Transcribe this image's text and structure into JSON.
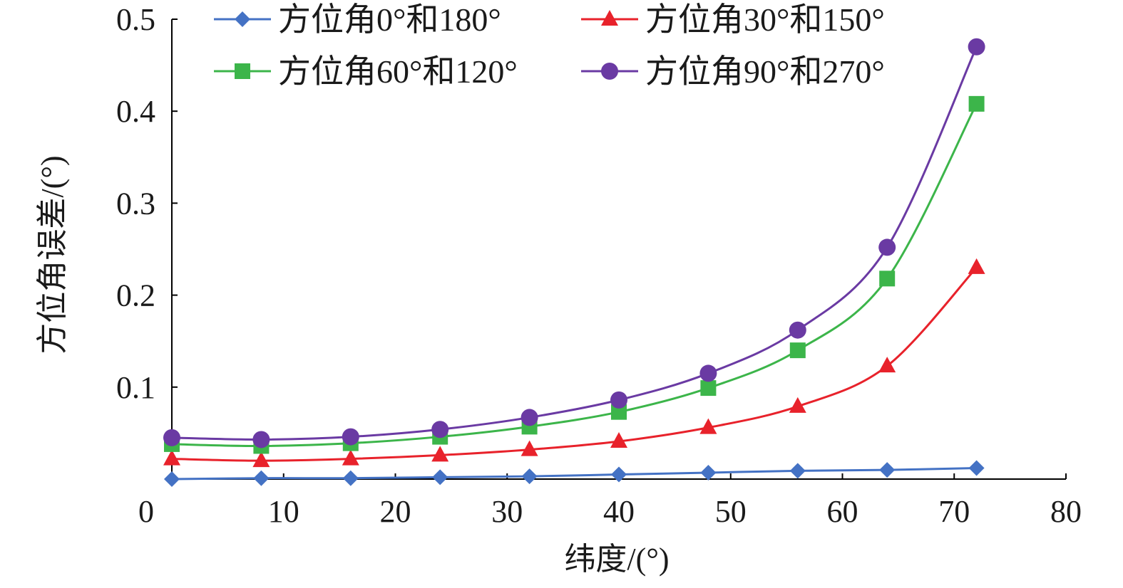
{
  "chart_data": {
    "type": "line",
    "title": "",
    "xlabel": "纬度/(°)",
    "ylabel": "方位角误差/(°)",
    "xlim": [
      0,
      80
    ],
    "ylim": [
      0,
      0.5
    ],
    "xticks": [
      "0",
      "10",
      "20",
      "30",
      "40",
      "50",
      "60",
      "70",
      "80"
    ],
    "yticks": [
      "0.1",
      "0.2",
      "0.3",
      "0.4",
      "0.5"
    ],
    "grid": false,
    "legend_position": "top",
    "x": [
      0,
      8,
      16,
      24,
      32,
      40,
      48,
      56,
      64,
      72
    ],
    "series": [
      {
        "name": "方位角0°和180°",
        "color": "#4472c4",
        "marker": "diamond",
        "values": [
          0.0,
          0.001,
          0.001,
          0.002,
          0.003,
          0.005,
          0.007,
          0.009,
          0.01,
          0.012
        ]
      },
      {
        "name": "方位角30°和150°",
        "color": "#e8222b",
        "marker": "triangle",
        "values": [
          0.022,
          0.02,
          0.022,
          0.026,
          0.032,
          0.041,
          0.056,
          0.079,
          0.123,
          0.23
        ]
      },
      {
        "name": "方位角60°和120°",
        "color": "#3cb54a",
        "marker": "square",
        "values": [
          0.038,
          0.036,
          0.039,
          0.046,
          0.057,
          0.073,
          0.099,
          0.14,
          0.218,
          0.408
        ]
      },
      {
        "name": "方位角90°和270°",
        "color": "#6a3aa3",
        "marker": "circle",
        "values": [
          0.045,
          0.043,
          0.046,
          0.054,
          0.067,
          0.086,
          0.115,
          0.162,
          0.252,
          0.47
        ]
      }
    ]
  }
}
